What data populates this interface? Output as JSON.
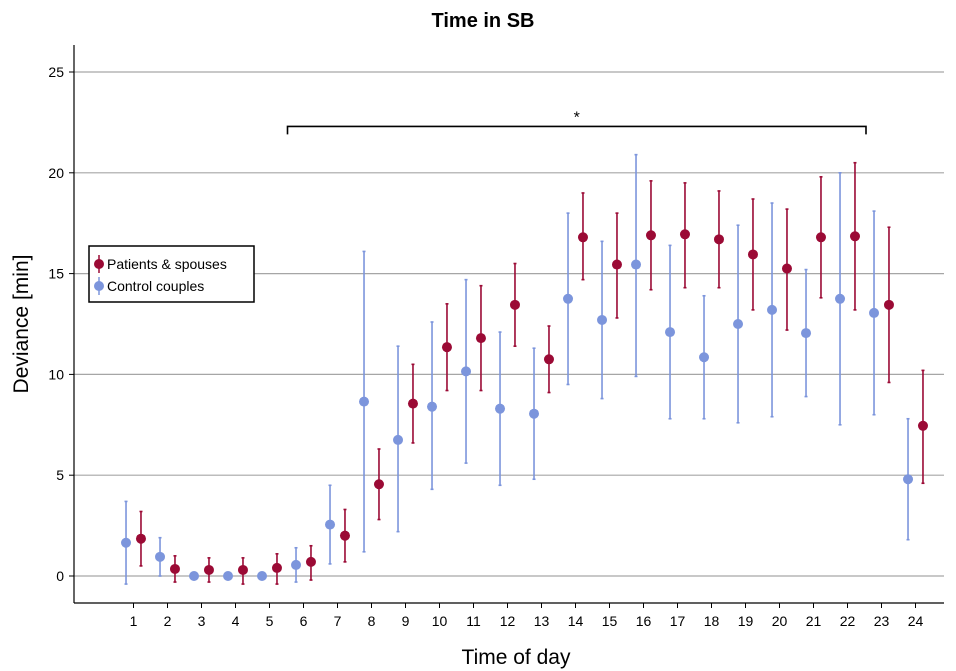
{
  "chart_data": {
    "type": "scatter",
    "title": "Time in SB",
    "xlabel": "Time of day",
    "ylabel": "Deviance [min]",
    "categories": [
      "1",
      "2",
      "3",
      "4",
      "5",
      "6",
      "7",
      "8",
      "9",
      "10",
      "11",
      "12",
      "13",
      "14",
      "15",
      "16",
      "17",
      "18",
      "19",
      "20",
      "21",
      "22",
      "23",
      "24"
    ],
    "ylim": [
      -1.4,
      26.4
    ],
    "yticks": [
      0,
      5,
      10,
      15,
      20,
      25
    ],
    "grid": "horizontal",
    "legend_position": "left",
    "error_bars": true,
    "series": [
      {
        "name": "Patients & spouses",
        "color": "#9b0a35",
        "offset": 0.22,
        "x": [
          1,
          2,
          3,
          4,
          5,
          6,
          7,
          8,
          9,
          10,
          11,
          12,
          13,
          14,
          15,
          16,
          17,
          18,
          19,
          20,
          21,
          22,
          23,
          24
        ],
        "values": [
          1.85,
          0.35,
          0.3,
          0.3,
          0.4,
          0.7,
          2.0,
          4.55,
          8.55,
          11.35,
          11.8,
          13.45,
          10.75,
          16.8,
          15.45,
          16.9,
          16.95,
          16.7,
          15.95,
          15.25,
          16.8,
          16.85,
          13.45,
          7.45
        ],
        "lower": [
          0.5,
          -0.3,
          -0.3,
          -0.4,
          -0.4,
          -0.2,
          0.7,
          2.8,
          6.6,
          9.2,
          9.2,
          11.4,
          9.1,
          14.7,
          12.8,
          14.2,
          14.3,
          14.3,
          13.2,
          12.2,
          13.8,
          13.2,
          9.6,
          4.6
        ],
        "upper": [
          3.2,
          1.0,
          0.9,
          0.9,
          1.1,
          1.5,
          3.3,
          6.3,
          10.5,
          13.5,
          14.4,
          15.5,
          12.4,
          19.0,
          18.0,
          19.6,
          19.5,
          19.1,
          18.7,
          18.2,
          19.8,
          20.5,
          17.3,
          10.2
        ]
      },
      {
        "name": "Control couples",
        "color": "#7c95dc",
        "offset": -0.22,
        "x": [
          1,
          2,
          3,
          4,
          5,
          6,
          7,
          8,
          9,
          10,
          11,
          12,
          13,
          14,
          15,
          16,
          17,
          18,
          19,
          20,
          21,
          22,
          23,
          24
        ],
        "values": [
          1.65,
          0.95,
          0.0,
          0.0,
          0.0,
          0.55,
          2.55,
          8.65,
          6.75,
          8.4,
          10.15,
          8.3,
          8.05,
          13.75,
          12.7,
          15.45,
          12.1,
          10.85,
          12.5,
          13.2,
          12.05,
          13.75,
          13.05,
          4.8
        ],
        "lower": [
          -0.4,
          0.0,
          0.0,
          0.0,
          0.0,
          -0.3,
          0.6,
          1.2,
          2.2,
          4.3,
          5.6,
          4.5,
          4.8,
          9.5,
          8.8,
          9.9,
          7.8,
          7.8,
          7.6,
          7.9,
          8.9,
          7.5,
          8.0,
          1.8
        ],
        "upper": [
          3.7,
          1.9,
          0.0,
          0.0,
          0.0,
          1.4,
          4.5,
          16.1,
          11.4,
          12.6,
          14.7,
          12.1,
          11.3,
          18.0,
          16.6,
          20.9,
          16.4,
          13.9,
          17.4,
          18.5,
          15.2,
          20.0,
          18.1,
          7.8
        ]
      }
    ],
    "annotations": [
      {
        "type": "bracket",
        "from": 6,
        "to": 23,
        "y": 22.3,
        "label": "*"
      }
    ]
  }
}
